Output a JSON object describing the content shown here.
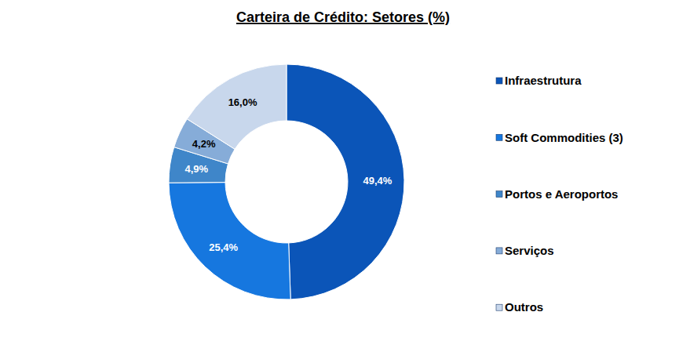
{
  "chart_data": {
    "type": "pie",
    "title": "Carteira de Crédito: Setores (%)",
    "categories": [
      "Infraestrutura",
      "Soft Commodities (3)",
      "Portos e Aeroportos",
      "Serviços",
      "Outros"
    ],
    "values": [
      49.4,
      25.4,
      4.9,
      4.2,
      16.0
    ],
    "value_labels": [
      "49,4%",
      "25,4%",
      "4,9%",
      "4,2%",
      "16,0%"
    ],
    "colors": [
      "#0b55b8",
      "#1677df",
      "#3f86c9",
      "#86acd8",
      "#c8d7ec"
    ],
    "data_labels": true,
    "legend": "right"
  }
}
